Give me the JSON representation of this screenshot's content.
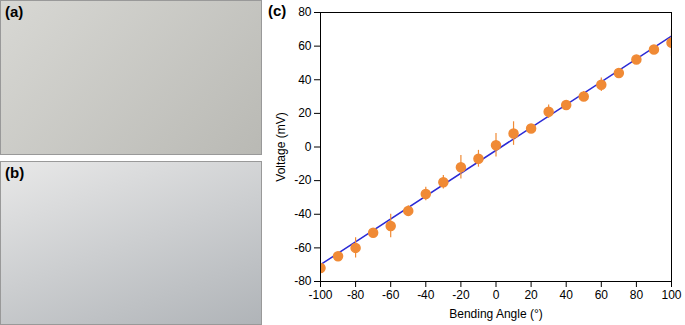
{
  "panels": {
    "a": {
      "label": "(a)"
    },
    "b": {
      "label": "(b)"
    }
  },
  "chart_data": {
    "type": "scatter",
    "title": "(c)",
    "x_label": "Bending Angle (°)",
    "y_label": "Voltage (mV)",
    "series": [
      {
        "type": "scatter",
        "color": "#f08a35",
        "marker": "circle",
        "x": [
          -100,
          -90,
          -80,
          -70,
          -60,
          -50,
          -40,
          -30,
          -20,
          -10,
          0,
          10,
          20,
          30,
          40,
          50,
          60,
          70,
          80,
          90,
          100
        ],
        "values": [
          -72,
          -65,
          -60,
          -51,
          -47,
          -38,
          -28,
          -21,
          -12,
          -7,
          1,
          8,
          11,
          21,
          25,
          30,
          37,
          44,
          52,
          58,
          62
        ],
        "errors": [
          2,
          2,
          6,
          2,
          7,
          3,
          4,
          4,
          7,
          5,
          7,
          7,
          2,
          4,
          2,
          3,
          4,
          2,
          2,
          2,
          8
        ]
      },
      {
        "type": "line",
        "color": "#2b2bd6",
        "line_style": "solid",
        "x": [
          -100,
          100
        ],
        "values": [
          -70,
          66
        ]
      }
    ],
    "xlim": [
      -100,
      100
    ],
    "xticks": [
      -100,
      -80,
      -60,
      -40,
      -20,
      0,
      20,
      40,
      60,
      80,
      100
    ],
    "ylim": [
      -80,
      80
    ],
    "yticks": [
      -80,
      -60,
      -40,
      -20,
      0,
      20,
      40,
      60,
      80
    ],
    "grid": false
  }
}
